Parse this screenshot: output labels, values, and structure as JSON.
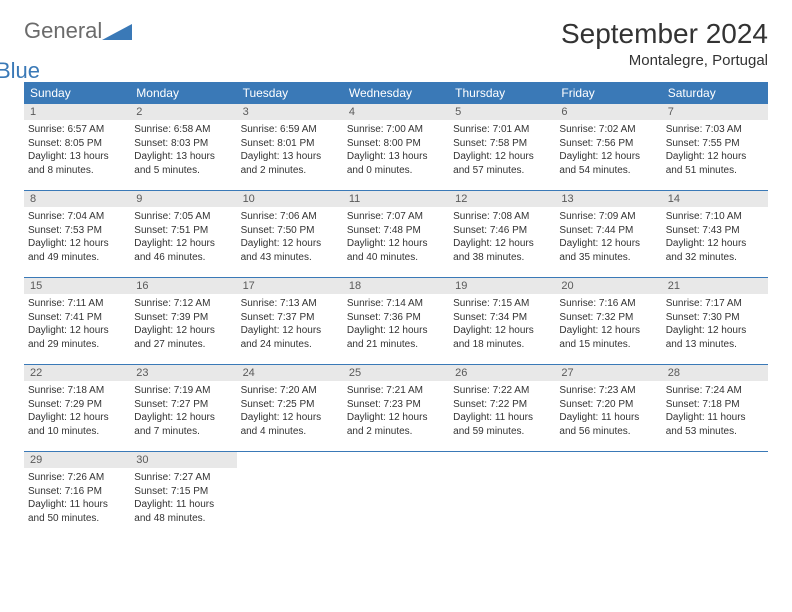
{
  "logo": {
    "text1": "General",
    "text2": "Blue"
  },
  "title": "September 2024",
  "location": "Montalegre, Portugal",
  "colors": {
    "header_bg": "#3a79b7",
    "header_text": "#ffffff",
    "daynum_bg": "#e8e8e8",
    "border": "#3a79b7",
    "body_text": "#333333"
  },
  "day_names": [
    "Sunday",
    "Monday",
    "Tuesday",
    "Wednesday",
    "Thursday",
    "Friday",
    "Saturday"
  ],
  "days": [
    {
      "n": 1,
      "sunrise": "6:57 AM",
      "sunset": "8:05 PM",
      "daylight": "13 hours and 8 minutes."
    },
    {
      "n": 2,
      "sunrise": "6:58 AM",
      "sunset": "8:03 PM",
      "daylight": "13 hours and 5 minutes."
    },
    {
      "n": 3,
      "sunrise": "6:59 AM",
      "sunset": "8:01 PM",
      "daylight": "13 hours and 2 minutes."
    },
    {
      "n": 4,
      "sunrise": "7:00 AM",
      "sunset": "8:00 PM",
      "daylight": "13 hours and 0 minutes."
    },
    {
      "n": 5,
      "sunrise": "7:01 AM",
      "sunset": "7:58 PM",
      "daylight": "12 hours and 57 minutes."
    },
    {
      "n": 6,
      "sunrise": "7:02 AM",
      "sunset": "7:56 PM",
      "daylight": "12 hours and 54 minutes."
    },
    {
      "n": 7,
      "sunrise": "7:03 AM",
      "sunset": "7:55 PM",
      "daylight": "12 hours and 51 minutes."
    },
    {
      "n": 8,
      "sunrise": "7:04 AM",
      "sunset": "7:53 PM",
      "daylight": "12 hours and 49 minutes."
    },
    {
      "n": 9,
      "sunrise": "7:05 AM",
      "sunset": "7:51 PM",
      "daylight": "12 hours and 46 minutes."
    },
    {
      "n": 10,
      "sunrise": "7:06 AM",
      "sunset": "7:50 PM",
      "daylight": "12 hours and 43 minutes."
    },
    {
      "n": 11,
      "sunrise": "7:07 AM",
      "sunset": "7:48 PM",
      "daylight": "12 hours and 40 minutes."
    },
    {
      "n": 12,
      "sunrise": "7:08 AM",
      "sunset": "7:46 PM",
      "daylight": "12 hours and 38 minutes."
    },
    {
      "n": 13,
      "sunrise": "7:09 AM",
      "sunset": "7:44 PM",
      "daylight": "12 hours and 35 minutes."
    },
    {
      "n": 14,
      "sunrise": "7:10 AM",
      "sunset": "7:43 PM",
      "daylight": "12 hours and 32 minutes."
    },
    {
      "n": 15,
      "sunrise": "7:11 AM",
      "sunset": "7:41 PM",
      "daylight": "12 hours and 29 minutes."
    },
    {
      "n": 16,
      "sunrise": "7:12 AM",
      "sunset": "7:39 PM",
      "daylight": "12 hours and 27 minutes."
    },
    {
      "n": 17,
      "sunrise": "7:13 AM",
      "sunset": "7:37 PM",
      "daylight": "12 hours and 24 minutes."
    },
    {
      "n": 18,
      "sunrise": "7:14 AM",
      "sunset": "7:36 PM",
      "daylight": "12 hours and 21 minutes."
    },
    {
      "n": 19,
      "sunrise": "7:15 AM",
      "sunset": "7:34 PM",
      "daylight": "12 hours and 18 minutes."
    },
    {
      "n": 20,
      "sunrise": "7:16 AM",
      "sunset": "7:32 PM",
      "daylight": "12 hours and 15 minutes."
    },
    {
      "n": 21,
      "sunrise": "7:17 AM",
      "sunset": "7:30 PM",
      "daylight": "12 hours and 13 minutes."
    },
    {
      "n": 22,
      "sunrise": "7:18 AM",
      "sunset": "7:29 PM",
      "daylight": "12 hours and 10 minutes."
    },
    {
      "n": 23,
      "sunrise": "7:19 AM",
      "sunset": "7:27 PM",
      "daylight": "12 hours and 7 minutes."
    },
    {
      "n": 24,
      "sunrise": "7:20 AM",
      "sunset": "7:25 PM",
      "daylight": "12 hours and 4 minutes."
    },
    {
      "n": 25,
      "sunrise": "7:21 AM",
      "sunset": "7:23 PM",
      "daylight": "12 hours and 2 minutes."
    },
    {
      "n": 26,
      "sunrise": "7:22 AM",
      "sunset": "7:22 PM",
      "daylight": "11 hours and 59 minutes."
    },
    {
      "n": 27,
      "sunrise": "7:23 AM",
      "sunset": "7:20 PM",
      "daylight": "11 hours and 56 minutes."
    },
    {
      "n": 28,
      "sunrise": "7:24 AM",
      "sunset": "7:18 PM",
      "daylight": "11 hours and 53 minutes."
    },
    {
      "n": 29,
      "sunrise": "7:26 AM",
      "sunset": "7:16 PM",
      "daylight": "11 hours and 50 minutes."
    },
    {
      "n": 30,
      "sunrise": "7:27 AM",
      "sunset": "7:15 PM",
      "daylight": "11 hours and 48 minutes."
    }
  ],
  "labels": {
    "sunrise": "Sunrise:",
    "sunset": "Sunset:",
    "daylight": "Daylight:"
  },
  "layout": {
    "start_dow": 0,
    "total_cells": 35
  }
}
